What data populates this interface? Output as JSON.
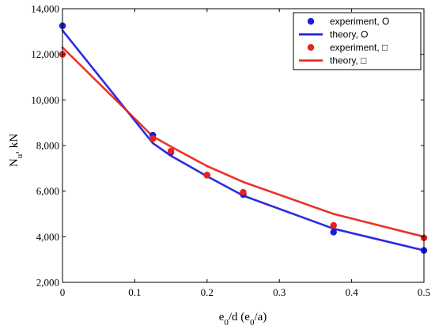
{
  "chart_data": {
    "type": "line",
    "xlabel": {
      "main": "e",
      "sub1": "0",
      "mid": "/d (e",
      "sub2": "0",
      "end": "/a)"
    },
    "ylabel": {
      "main": "N",
      "sub": "u",
      "end": ", kN"
    },
    "xlim": [
      0,
      0.5
    ],
    "ylim": [
      2000,
      14000
    ],
    "x_ticks": [
      0,
      0.1,
      0.2,
      0.3,
      0.4,
      0.5
    ],
    "x_tick_labels": [
      "0",
      "0.1",
      "0.2",
      "0.3",
      "0.4",
      "0.5"
    ],
    "y_ticks": [
      2000,
      4000,
      6000,
      8000,
      10000,
      12000,
      14000
    ],
    "y_tick_labels": [
      "2,000",
      "4,000",
      "6,000",
      "8,000",
      "10,000",
      "12,000",
      "14,000"
    ],
    "grid": false,
    "legend_position": "top-right",
    "series": [
      {
        "name": "experiment, O",
        "kind": "scatter",
        "color": "#1a1adc",
        "points": [
          [
            0,
            13250
          ],
          [
            0.125,
            8450
          ],
          [
            0.15,
            7700
          ],
          [
            0.2,
            6700
          ],
          [
            0.25,
            5850
          ],
          [
            0.375,
            4200
          ],
          [
            0.5,
            3400
          ]
        ]
      },
      {
        "name": "theory, O",
        "kind": "line",
        "color": "#1a1adc",
        "points": [
          [
            0,
            13050
          ],
          [
            0.125,
            8100
          ],
          [
            0.15,
            7550
          ],
          [
            0.2,
            6650
          ],
          [
            0.25,
            5800
          ],
          [
            0.375,
            4350
          ],
          [
            0.5,
            3400
          ]
        ]
      },
      {
        "name": "experiment, □",
        "kind": "scatter",
        "color": "#e8211a",
        "points": [
          [
            0,
            12000
          ],
          [
            0.125,
            8300
          ],
          [
            0.15,
            7750
          ],
          [
            0.2,
            6700
          ],
          [
            0.25,
            5950
          ],
          [
            0.375,
            4500
          ],
          [
            0.5,
            3950
          ]
        ]
      },
      {
        "name": "theory, □",
        "kind": "line",
        "color": "#e8211a",
        "points": [
          [
            0,
            12300
          ],
          [
            0.125,
            8400
          ],
          [
            0.15,
            7950
          ],
          [
            0.2,
            7100
          ],
          [
            0.25,
            6400
          ],
          [
            0.375,
            5000
          ],
          [
            0.5,
            4000
          ]
        ]
      }
    ]
  }
}
